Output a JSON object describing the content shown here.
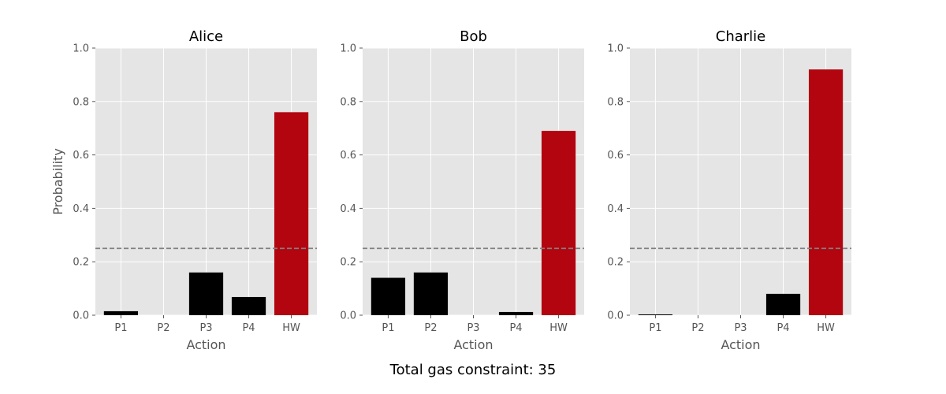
{
  "figure": {
    "suptitle": "Total gas constraint: 35"
  },
  "chart_data": [
    {
      "type": "bar",
      "title": "Alice",
      "xlabel": "Action",
      "ylabel": "Probability",
      "categories": [
        "P1",
        "P2",
        "P3",
        "P4",
        "HW"
      ],
      "values": [
        0.015,
        0.0,
        0.16,
        0.068,
        0.76
      ],
      "bar_colors": [
        "#000000",
        "#000000",
        "#000000",
        "#000000",
        "#b2050f"
      ],
      "ylim": [
        0,
        1.0
      ],
      "yticks": [
        "0.0",
        "0.2",
        "0.4",
        "0.6",
        "0.8",
        "1.0"
      ],
      "reference_line": {
        "y": 0.25,
        "style": "dashed",
        "color": "#808080"
      },
      "grid": true,
      "background": "#e5e5e5"
    },
    {
      "type": "bar",
      "title": "Bob",
      "xlabel": "Action",
      "ylabel": "",
      "categories": [
        "P1",
        "P2",
        "P3",
        "P4",
        "HW"
      ],
      "values": [
        0.14,
        0.16,
        0.0,
        0.012,
        0.69
      ],
      "bar_colors": [
        "#000000",
        "#000000",
        "#000000",
        "#000000",
        "#b2050f"
      ],
      "ylim": [
        0,
        1.0
      ],
      "yticks": [
        "0.0",
        "0.2",
        "0.4",
        "0.6",
        "0.8",
        "1.0"
      ],
      "reference_line": {
        "y": 0.25,
        "style": "dashed",
        "color": "#808080"
      },
      "grid": true,
      "background": "#e5e5e5"
    },
    {
      "type": "bar",
      "title": "Charlie",
      "xlabel": "Action",
      "ylabel": "",
      "categories": [
        "P1",
        "P2",
        "P3",
        "P4",
        "HW"
      ],
      "values": [
        0.003,
        0.0,
        0.0,
        0.08,
        0.92
      ],
      "bar_colors": [
        "#000000",
        "#000000",
        "#000000",
        "#000000",
        "#b2050f"
      ],
      "ylim": [
        0,
        1.0
      ],
      "yticks": [
        "0.0",
        "0.2",
        "0.4",
        "0.6",
        "0.8",
        "1.0"
      ],
      "reference_line": {
        "y": 0.25,
        "style": "dashed",
        "color": "#808080"
      },
      "grid": true,
      "background": "#e5e5e5"
    }
  ]
}
